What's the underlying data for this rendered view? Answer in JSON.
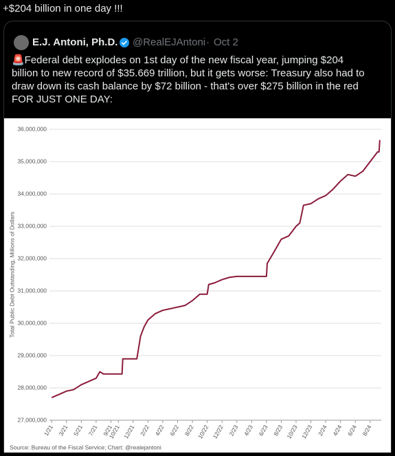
{
  "post": {
    "text": "+$204 billion in one day !!!"
  },
  "quoted": {
    "name": "E.J. Antoni, Ph.D.",
    "handle": "@RealEJAntoni",
    "separator": "·",
    "date": "Oct 2",
    "lines": [
      "🚨Federal debt explodes on 1st day of the new fiscal year, jumping $204",
      "billion to new record of $35.669 trillion, but it gets worse: Treasury also had to",
      "draw down its cash balance by $72 billion - that's over $275 billion in the red",
      "FOR JUST ONE DAY:"
    ]
  },
  "chart_data": {
    "type": "line",
    "y_label": "Total Public Debt Outstanding, Millions of Dollars",
    "source": "Source: Bureau of the Fiscal Service; Chart: @realejantoni",
    "color": "#8b1a3a",
    "grid": true,
    "x": [
      0,
      1,
      2,
      3,
      4,
      5,
      6,
      6.5,
      7,
      9.5,
      9.6,
      11.5,
      12,
      12.5,
      13,
      14,
      15,
      16,
      17,
      18,
      19,
      20,
      21,
      21.2,
      22,
      23,
      24,
      25,
      29,
      29.1,
      30,
      31,
      32,
      33,
      33.5,
      34,
      35,
      36,
      37,
      38,
      39,
      40,
      41,
      42,
      43,
      44,
      44.2,
      44.3
    ],
    "values": [
      27700000,
      27800000,
      27900000,
      27950000,
      28100000,
      28200000,
      28300000,
      28500000,
      28430000,
      28430000,
      28900000,
      28900000,
      29600000,
      29900000,
      30100000,
      30300000,
      30400000,
      30450000,
      30500000,
      30550000,
      30700000,
      30900000,
      30900000,
      31200000,
      31250000,
      31350000,
      31420000,
      31450000,
      31450000,
      31850000,
      32200000,
      32600000,
      32700000,
      33000000,
      33100000,
      33650000,
      33700000,
      33850000,
      33950000,
      34150000,
      34400000,
      34600000,
      34550000,
      34700000,
      35000000,
      35300000,
      35300000,
      35669000
    ],
    "xlim": [
      -0.3,
      44.5
    ],
    "ylim": [
      27000000,
      36000000
    ],
    "yticks": [
      {
        "value": 27000000,
        "label": "27,000,000"
      },
      {
        "value": 28000000,
        "label": "28,000,000"
      },
      {
        "value": 29000000,
        "label": "29,000,000"
      },
      {
        "value": 30000000,
        "label": "30,000,000"
      },
      {
        "value": 31000000,
        "label": "31,000,000"
      },
      {
        "value": 32000000,
        "label": "32,000,000"
      },
      {
        "value": 33000000,
        "label": "33,000,000"
      },
      {
        "value": 34000000,
        "label": "34,000,000"
      },
      {
        "value": 35000000,
        "label": "35,000,000"
      },
      {
        "value": 36000000,
        "label": "36,000,000"
      }
    ],
    "xticks": [
      {
        "value": 0,
        "label": "1/21"
      },
      {
        "value": 2,
        "label": "3/21"
      },
      {
        "value": 4,
        "label": "5/21"
      },
      {
        "value": 6,
        "label": "7/21"
      },
      {
        "value": 8,
        "label": "9/21"
      },
      {
        "value": 9,
        "label": "10/21"
      },
      {
        "value": 11,
        "label": "12/21"
      },
      {
        "value": 13,
        "label": "2/22"
      },
      {
        "value": 15,
        "label": "4/22"
      },
      {
        "value": 17,
        "label": "6/22"
      },
      {
        "value": 19,
        "label": "8/22"
      },
      {
        "value": 21,
        "label": "10/22"
      },
      {
        "value": 23,
        "label": "12/22"
      },
      {
        "value": 25,
        "label": "2/23"
      },
      {
        "value": 27,
        "label": "4/23"
      },
      {
        "value": 29,
        "label": "6/23"
      },
      {
        "value": 31,
        "label": "8/23"
      },
      {
        "value": 33,
        "label": "10/23"
      },
      {
        "value": 35,
        "label": "12/23"
      },
      {
        "value": 37,
        "label": "2/24"
      },
      {
        "value": 39,
        "label": "4/24"
      },
      {
        "value": 41,
        "label": "6/24"
      },
      {
        "value": 43,
        "label": "8/24"
      }
    ]
  }
}
